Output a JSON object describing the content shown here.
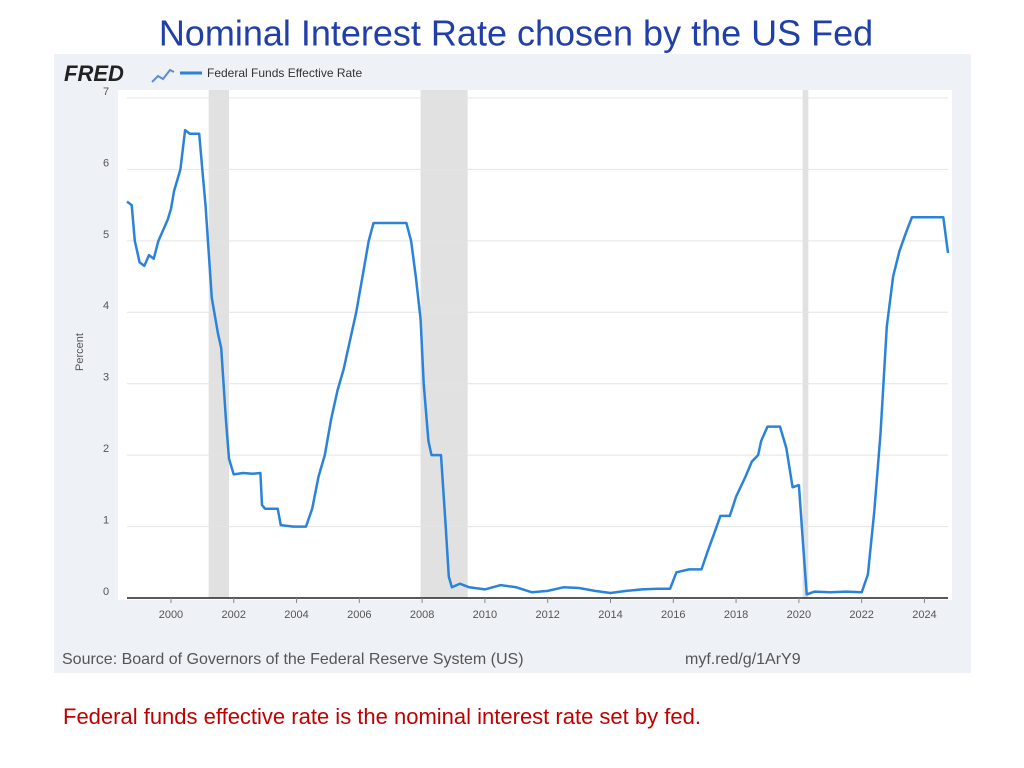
{
  "chart_data": {
    "type": "line",
    "title": "Nominal Interest Rate chosen by the US Fed",
    "brand": "FRED",
    "y_label": "Percent",
    "source": "Source: Board of Governors of the Federal Reserve System (US)",
    "link": "myf.red/g/1ArY9",
    "note": "Federal funds effective rate is the nominal interest rate set by fed.",
    "x": [
      1998.6,
      1998.75,
      1998.85,
      1999.0,
      1999.15,
      1999.3,
      1999.45,
      1999.6,
      1999.8,
      1999.9,
      2000.0,
      2000.1,
      2000.3,
      2000.45,
      2000.6,
      2000.9,
      2001.0,
      2001.1,
      2001.3,
      2001.5,
      2001.6,
      2001.75,
      2001.85,
      2002.0,
      2002.3,
      2002.6,
      2002.85,
      2002.9,
      2003.0,
      2003.4,
      2003.5,
      2003.9,
      2004.3,
      2004.5,
      2004.7,
      2004.9,
      2005.1,
      2005.3,
      2005.5,
      2005.7,
      2005.9,
      2006.1,
      2006.3,
      2006.45,
      2006.8,
      2007.0,
      2007.5,
      2007.65,
      2007.8,
      2007.95,
      2008.05,
      2008.2,
      2008.3,
      2008.6,
      2008.75,
      2008.85,
      2008.95,
      2009.2,
      2009.5,
      2010.0,
      2010.5,
      2011.0,
      2011.5,
      2012.0,
      2012.5,
      2013.0,
      2013.5,
      2014.0,
      2014.5,
      2015.0,
      2015.5,
      2015.9,
      2016.1,
      2016.5,
      2016.9,
      2017.1,
      2017.3,
      2017.5,
      2017.8,
      2018.0,
      2018.3,
      2018.5,
      2018.7,
      2018.8,
      2019.0,
      2019.4,
      2019.6,
      2019.8,
      2020.0,
      2020.15,
      2020.25,
      2020.5,
      2021.0,
      2021.5,
      2022.0,
      2022.2,
      2022.4,
      2022.6,
      2022.8,
      2023.0,
      2023.2,
      2023.4,
      2023.6,
      2024.0,
      2024.6,
      2024.75
    ],
    "series": [
      {
        "name": "Federal Funds Effective Rate",
        "color": "#2b83d9",
        "values": [
          5.55,
          5.5,
          5.0,
          4.7,
          4.65,
          4.8,
          4.75,
          5.0,
          5.2,
          5.3,
          5.45,
          5.7,
          6.0,
          6.55,
          6.5,
          6.5,
          6.0,
          5.5,
          4.2,
          3.7,
          3.5,
          2.5,
          1.95,
          1.73,
          1.75,
          1.74,
          1.75,
          1.3,
          1.25,
          1.25,
          1.02,
          1.0,
          1.0,
          1.25,
          1.7,
          2.0,
          2.5,
          2.9,
          3.2,
          3.6,
          4.0,
          4.5,
          5.0,
          5.25,
          5.25,
          5.25,
          5.25,
          5.0,
          4.5,
          3.9,
          3.0,
          2.2,
          2.0,
          2.0,
          1.0,
          0.3,
          0.15,
          0.2,
          0.15,
          0.12,
          0.18,
          0.15,
          0.08,
          0.1,
          0.15,
          0.14,
          0.1,
          0.07,
          0.1,
          0.12,
          0.13,
          0.13,
          0.36,
          0.4,
          0.4,
          0.66,
          0.9,
          1.15,
          1.15,
          1.42,
          1.7,
          1.91,
          2.0,
          2.2,
          2.4,
          2.4,
          2.1,
          1.55,
          1.58,
          0.65,
          0.05,
          0.09,
          0.08,
          0.09,
          0.08,
          0.33,
          1.2,
          2.3,
          3.8,
          4.5,
          4.85,
          5.1,
          5.33,
          5.33,
          5.33,
          4.83
        ]
      }
    ],
    "recessions": [
      [
        2001.2,
        2001.85
      ],
      [
        2007.95,
        2009.45
      ],
      [
        2020.12,
        2020.3
      ]
    ],
    "recession_color": "#e1e1e1",
    "xlim": [
      1998.6,
      2024.75
    ],
    "xticks": [
      2000,
      2002,
      2004,
      2006,
      2008,
      2010,
      2012,
      2014,
      2016,
      2018,
      2020,
      2022,
      2024
    ],
    "ylim": [
      0,
      7
    ],
    "yticks": [
      0,
      1,
      2,
      3,
      4,
      5,
      6,
      7
    ],
    "grid": true
  }
}
